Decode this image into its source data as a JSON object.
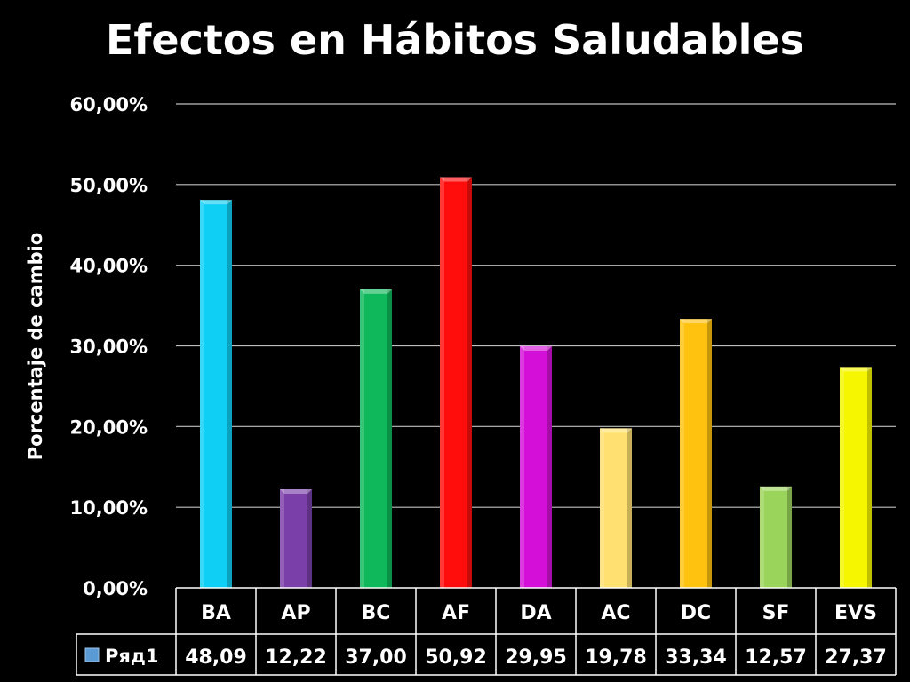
{
  "chart_data": {
    "type": "bar",
    "title": "Efectos en Hábitos Saludables",
    "xlabel": "",
    "ylabel": "Porcentaje de cambio",
    "ylim": [
      0,
      60
    ],
    "yticks": [
      "0,00%",
      "10,00%",
      "20,00%",
      "30,00%",
      "40,00%",
      "50,00%",
      "60,00%"
    ],
    "categories": [
      "BA",
      "AP",
      "BC",
      "AF",
      "DA",
      "AC",
      "DC",
      "SF",
      "EVS"
    ],
    "series": [
      {
        "name": "Ряд1",
        "values": [
          48.09,
          12.22,
          37.0,
          50.92,
          29.95,
          19.78,
          33.34,
          12.57,
          27.37
        ],
        "labels": [
          "48,09",
          "12,22",
          "37,00",
          "50,92",
          "29,95",
          "19,78",
          "33,34",
          "12,57",
          "27,37"
        ]
      }
    ],
    "bar_colors": [
      "#10cff5",
      "#7a3fa8",
      "#0fb85a",
      "#ff0d0d",
      "#d410d8",
      "#ffe070",
      "#ffc20f",
      "#9ad45a",
      "#f6f600"
    ],
    "grid": true,
    "legend": "data-table"
  }
}
